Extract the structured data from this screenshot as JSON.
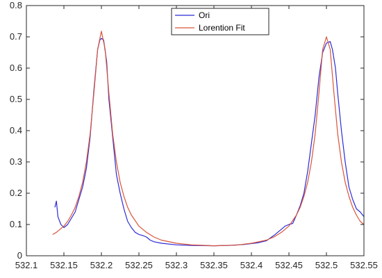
{
  "chart_data": {
    "type": "line",
    "title": "",
    "xlabel": "",
    "ylabel": "",
    "xlim": [
      532.1,
      532.55
    ],
    "ylim": [
      0,
      0.8
    ],
    "grid": false,
    "legend_position": "top-center",
    "x_ticks": [
      "532.1",
      "532.15",
      "532.2",
      "532.25",
      "532.3",
      "532.35",
      "532.4",
      "532.45",
      "532.5",
      "532.55"
    ],
    "y_ticks": [
      "0",
      "0.1",
      "0.2",
      "0.3",
      "0.4",
      "0.5",
      "0.6",
      "0.7",
      "0.8"
    ],
    "series": [
      {
        "name": "Ori",
        "color": "#2b2bd6",
        "points": [
          [
            532.138,
            0.155
          ],
          [
            532.14,
            0.175
          ],
          [
            532.142,
            0.125
          ],
          [
            532.146,
            0.1
          ],
          [
            532.15,
            0.09
          ],
          [
            532.155,
            0.1
          ],
          [
            532.16,
            0.12
          ],
          [
            532.165,
            0.14
          ],
          [
            532.17,
            0.18
          ],
          [
            532.175,
            0.22
          ],
          [
            532.18,
            0.28
          ],
          [
            532.185,
            0.38
          ],
          [
            532.19,
            0.53
          ],
          [
            532.195,
            0.66
          ],
          [
            532.198,
            0.69
          ],
          [
            532.2,
            0.695
          ],
          [
            532.203,
            0.69
          ],
          [
            532.207,
            0.62
          ],
          [
            532.21,
            0.5
          ],
          [
            532.215,
            0.38
          ],
          [
            532.22,
            0.26
          ],
          [
            532.225,
            0.2
          ],
          [
            532.23,
            0.15
          ],
          [
            532.235,
            0.11
          ],
          [
            532.24,
            0.09
          ],
          [
            532.245,
            0.075
          ],
          [
            532.25,
            0.068
          ],
          [
            532.255,
            0.065
          ],
          [
            532.26,
            0.06
          ],
          [
            532.265,
            0.05
          ],
          [
            532.27,
            0.045
          ],
          [
            532.28,
            0.04
          ],
          [
            532.3,
            0.035
          ],
          [
            532.32,
            0.033
          ],
          [
            532.35,
            0.032
          ],
          [
            532.37,
            0.033
          ],
          [
            532.39,
            0.036
          ],
          [
            532.41,
            0.042
          ],
          [
            532.42,
            0.048
          ],
          [
            532.43,
            0.065
          ],
          [
            532.435,
            0.075
          ],
          [
            532.44,
            0.085
          ],
          [
            532.445,
            0.095
          ],
          [
            532.45,
            0.1
          ],
          [
            532.455,
            0.103
          ],
          [
            532.46,
            0.13
          ],
          [
            532.465,
            0.16
          ],
          [
            532.47,
            0.2
          ],
          [
            532.475,
            0.27
          ],
          [
            532.48,
            0.36
          ],
          [
            532.485,
            0.45
          ],
          [
            532.49,
            0.57
          ],
          [
            532.495,
            0.65
          ],
          [
            532.5,
            0.68
          ],
          [
            532.505,
            0.685
          ],
          [
            532.508,
            0.66
          ],
          [
            532.512,
            0.6
          ],
          [
            532.515,
            0.52
          ],
          [
            532.52,
            0.4
          ],
          [
            532.525,
            0.3
          ],
          [
            532.53,
            0.22
          ],
          [
            532.535,
            0.18
          ],
          [
            532.54,
            0.15
          ],
          [
            532.545,
            0.14
          ],
          [
            532.55,
            0.125
          ]
        ]
      },
      {
        "name": "Lorention Fit",
        "color": "#d9533a",
        "points": [
          [
            532.135,
            0.068
          ],
          [
            532.14,
            0.075
          ],
          [
            532.145,
            0.085
          ],
          [
            532.15,
            0.095
          ],
          [
            532.155,
            0.11
          ],
          [
            532.16,
            0.13
          ],
          [
            532.165,
            0.155
          ],
          [
            532.17,
            0.19
          ],
          [
            532.175,
            0.235
          ],
          [
            532.18,
            0.3
          ],
          [
            532.185,
            0.39
          ],
          [
            532.19,
            0.52
          ],
          [
            532.195,
            0.66
          ],
          [
            532.2,
            0.718
          ],
          [
            532.205,
            0.66
          ],
          [
            532.21,
            0.52
          ],
          [
            532.215,
            0.39
          ],
          [
            532.22,
            0.3
          ],
          [
            532.225,
            0.235
          ],
          [
            532.23,
            0.19
          ],
          [
            532.235,
            0.155
          ],
          [
            532.24,
            0.13
          ],
          [
            532.25,
            0.095
          ],
          [
            532.26,
            0.075
          ],
          [
            532.27,
            0.06
          ],
          [
            532.28,
            0.05
          ],
          [
            532.3,
            0.04
          ],
          [
            532.32,
            0.035
          ],
          [
            532.35,
            0.032
          ],
          [
            532.38,
            0.034
          ],
          [
            532.4,
            0.04
          ],
          [
            532.42,
            0.05
          ],
          [
            532.43,
            0.06
          ],
          [
            532.44,
            0.075
          ],
          [
            532.45,
            0.095
          ],
          [
            532.46,
            0.13
          ],
          [
            532.465,
            0.155
          ],
          [
            532.47,
            0.19
          ],
          [
            532.475,
            0.235
          ],
          [
            532.48,
            0.3
          ],
          [
            532.485,
            0.39
          ],
          [
            532.49,
            0.52
          ],
          [
            532.495,
            0.66
          ],
          [
            532.5,
            0.7
          ],
          [
            532.505,
            0.66
          ],
          [
            532.51,
            0.52
          ],
          [
            532.515,
            0.39
          ],
          [
            532.52,
            0.3
          ],
          [
            532.525,
            0.235
          ],
          [
            532.53,
            0.19
          ],
          [
            532.535,
            0.155
          ],
          [
            532.54,
            0.13
          ],
          [
            532.545,
            0.11
          ],
          [
            532.55,
            0.1
          ]
        ]
      }
    ]
  }
}
